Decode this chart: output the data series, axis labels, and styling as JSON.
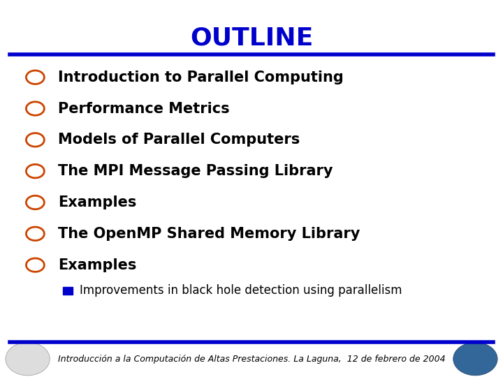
{
  "title": "OUTLINE",
  "title_color": "#0000cc",
  "title_fontsize": 26,
  "title_fontweight": "bold",
  "line_color": "#0000cc",
  "background_color": "#ffffff",
  "bullet_color": "#cc4400",
  "sub_bullet_color": "#0000cc",
  "items": [
    "Introduction to Parallel Computing",
    "Performance Metrics",
    "Models of Parallel Computers",
    "The MPI Message Passing Library",
    "Examples",
    "The OpenMP Shared Memory Library",
    "Examples"
  ],
  "sub_items": [
    "Improvements in black hole detection using parallelism"
  ],
  "item_fontsize": 15,
  "sub_item_fontsize": 12,
  "footer_text": "Introducción a la Computación de Altas Prestaciones. La Laguna,  12 de febrero de 2004",
  "footer_fontsize": 9,
  "footer_color": "#000000"
}
